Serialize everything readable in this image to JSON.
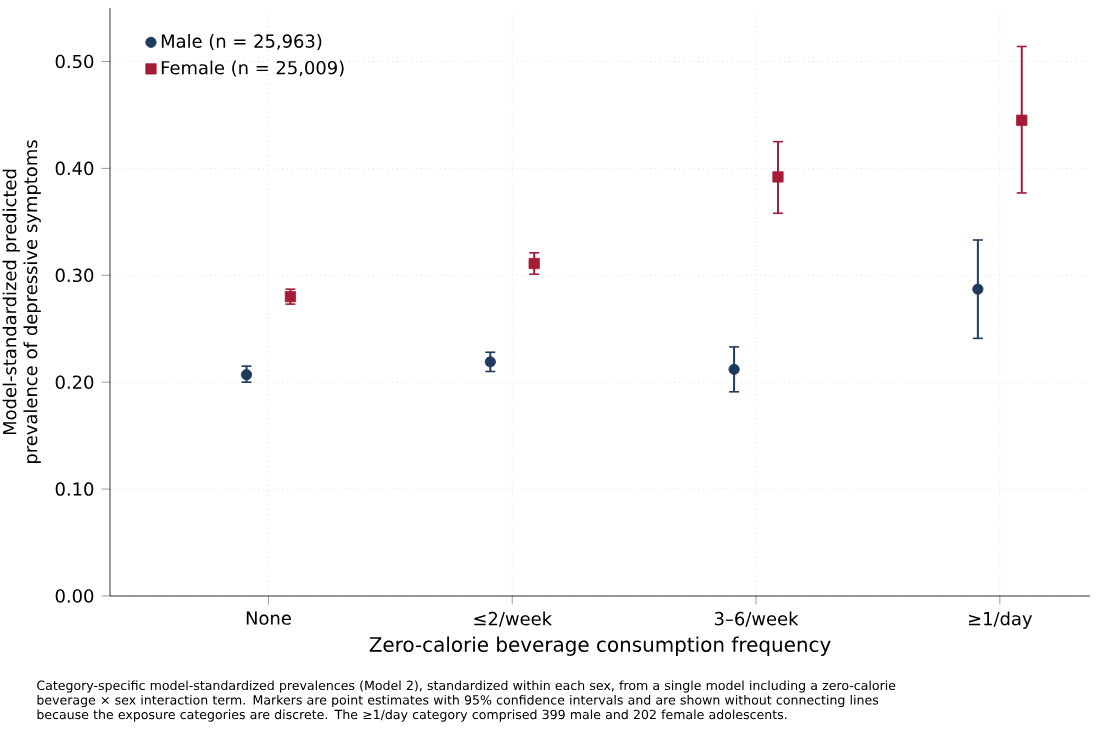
{
  "chart_data": {
    "type": "scatter",
    "xlabel": "Zero-calorie beverage consumption frequency",
    "ylabel": "Model-standardized predicted prevalence of depressive symptoms",
    "categories": [
      "None",
      "≤2/week",
      "3–6/week",
      "≥1/day"
    ],
    "series": [
      {
        "name": "Male (n = 25,963)",
        "color": "#1f3a5f",
        "marker": "circle",
        "values": [
          0.207,
          0.219,
          0.212,
          0.287
        ],
        "errors": [
          [
            0.2,
            0.215
          ],
          [
            0.21,
            0.228
          ],
          [
            0.191,
            0.233
          ],
          [
            0.241,
            0.333
          ]
        ]
      },
      {
        "name": "Female (n = 25,009)",
        "color": "#a51c36",
        "marker": "square",
        "values": [
          0.28,
          0.311,
          0.392,
          0.445
        ],
        "errors": [
          [
            0.273,
            0.287
          ],
          [
            0.301,
            0.321
          ],
          [
            0.358,
            0.425
          ],
          [
            0.377,
            0.514
          ]
        ]
      }
    ],
    "ylim": [
      0,
      0.55
    ],
    "yticks": [
      {
        "value": 0,
        "label": "0.00"
      },
      {
        "value": 0.1,
        "label": "0.10"
      },
      {
        "value": 0.2,
        "label": "0.20"
      },
      {
        "value": 0.3,
        "label": "0.30"
      },
      {
        "value": 0.4,
        "label": "0.40"
      },
      {
        "value": 0.5,
        "label": "0.50"
      }
    ],
    "grid": true,
    "legend": "top left",
    "annotations": [
      "Category-specific model-standardized prevalences (Model 2), standardized within each sex, from a single model including a zero-calorie beverage × sex interaction term. Markers are point estimates with 95% confidence intervals and are shown without connecting lines because the exposure categories are discrete. The ≥1/day category comprised 399 male and 202 female adolescents."
    ]
  }
}
